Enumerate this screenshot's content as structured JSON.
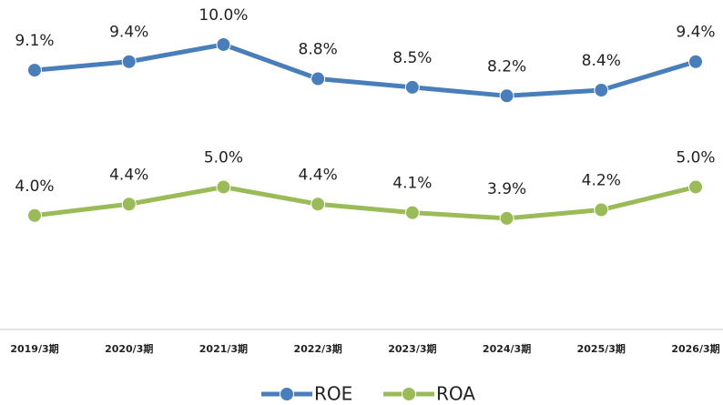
{
  "chart_data": {
    "type": "line",
    "categories": [
      "2019/3期",
      "2020/3期",
      "2021/3期",
      "2022/3期",
      "2023/3期",
      "2024/3期",
      "2025/3期",
      "2026/3期"
    ],
    "series": [
      {
        "name": "ROE",
        "color": "#4a7ebb",
        "values": [
          9.1,
          9.4,
          10.0,
          8.8,
          8.5,
          8.2,
          8.4,
          9.4
        ],
        "value_labels": [
          "9.1%",
          "9.4%",
          "10.0%",
          "8.8%",
          "8.5%",
          "8.2%",
          "8.4%",
          "9.4%"
        ]
      },
      {
        "name": "ROA",
        "color": "#9bbb59",
        "values": [
          4.0,
          4.4,
          5.0,
          4.4,
          4.1,
          3.9,
          4.2,
          5.0
        ],
        "value_labels": [
          "4.0%",
          "4.4%",
          "5.0%",
          "4.4%",
          "4.1%",
          "3.9%",
          "4.2%",
          "5.0%"
        ]
      }
    ],
    "ylim": [
      0,
      11.5
    ],
    "legend": "bottom"
  }
}
